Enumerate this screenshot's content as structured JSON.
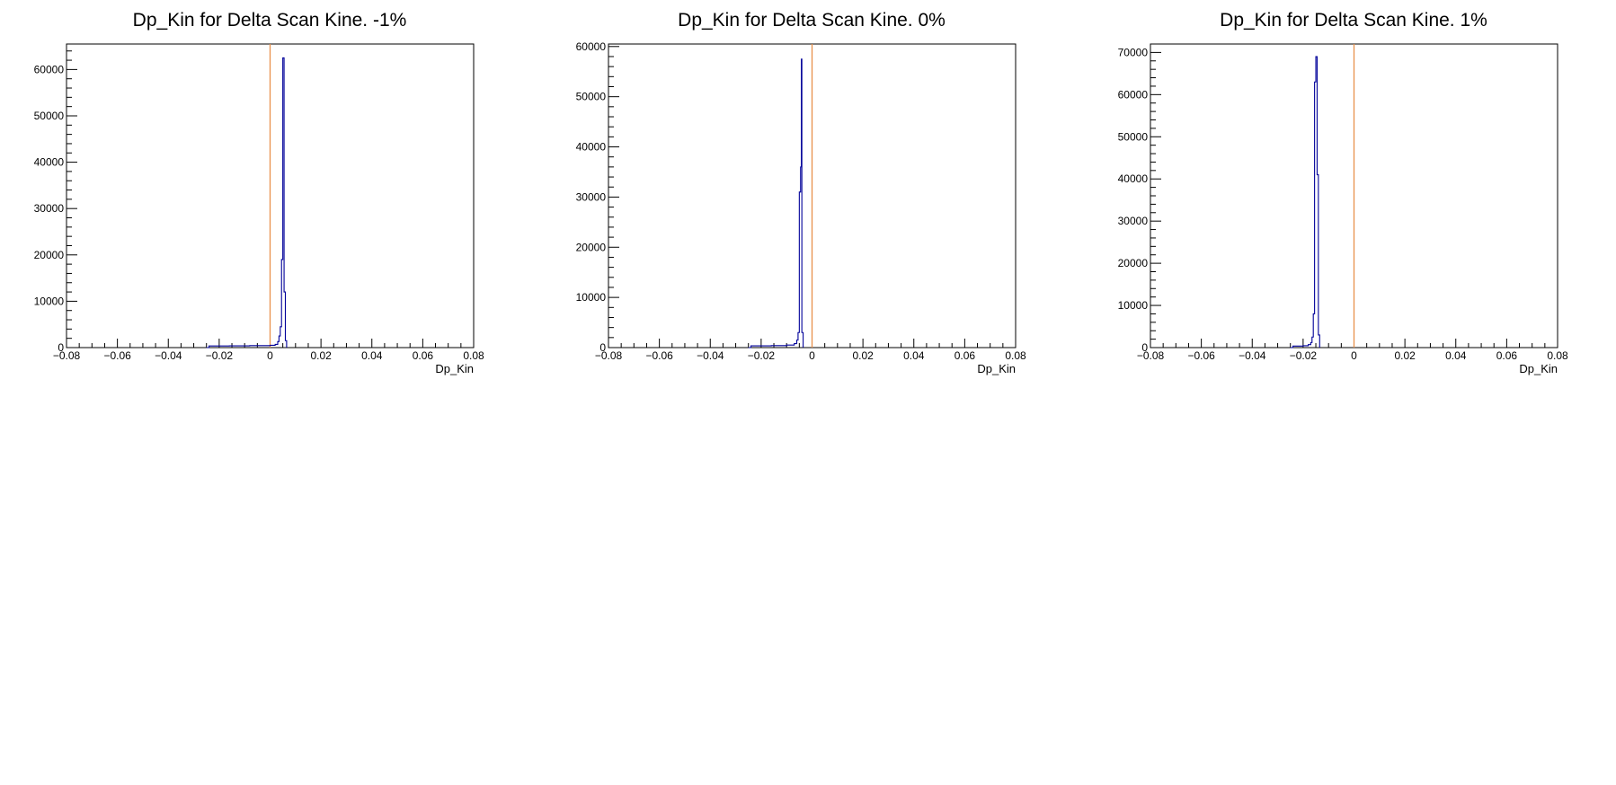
{
  "colors": {
    "histogram": "#000099",
    "marker_line": "#e8914a",
    "frame": "#000000",
    "background": "#ffffff"
  },
  "chart_data": [
    {
      "type": "histogram",
      "title": "Dp_Kin for Delta Scan Kine. -1%",
      "xlabel": "Dp_Kin",
      "ylabel": "",
      "xlim": [
        -0.08,
        0.08
      ],
      "ylim": [
        0,
        65500
      ],
      "x_tick_labels": [
        "−0.08",
        "−0.06",
        "−0.04",
        "−0.02",
        "0",
        "0.02",
        "0.04",
        "0.06",
        "0.08"
      ],
      "y_tick_labels": [
        "0",
        "10000",
        "20000",
        "30000",
        "40000",
        "50000",
        "60000"
      ],
      "y_ticks": [
        0,
        10000,
        20000,
        30000,
        40000,
        50000,
        60000
      ],
      "marker_x": 0,
      "grid": false,
      "histogram": [
        {
          "x": -0.025,
          "y": 0
        },
        {
          "x": -0.024,
          "y": 350
        },
        {
          "x": -0.016,
          "y": 380
        },
        {
          "x": -0.008,
          "y": 420
        },
        {
          "x": 0.0,
          "y": 500
        },
        {
          "x": 0.002,
          "y": 700
        },
        {
          "x": 0.003,
          "y": 1300
        },
        {
          "x": 0.0035,
          "y": 2500
        },
        {
          "x": 0.004,
          "y": 4500
        },
        {
          "x": 0.0045,
          "y": 19000
        },
        {
          "x": 0.005,
          "y": 62500
        },
        {
          "x": 0.0055,
          "y": 12000
        },
        {
          "x": 0.006,
          "y": 1500
        },
        {
          "x": 0.0065,
          "y": 0
        }
      ]
    },
    {
      "type": "histogram",
      "title": "Dp_Kin for Delta Scan Kine. 0%",
      "xlabel": "Dp_Kin",
      "ylabel": "",
      "xlim": [
        -0.08,
        0.08
      ],
      "ylim": [
        0,
        60500
      ],
      "x_tick_labels": [
        "−0.08",
        "−0.06",
        "−0.04",
        "−0.02",
        "0",
        "0.02",
        "0.04",
        "0.06",
        "0.08"
      ],
      "y_tick_labels": [
        "0",
        "10000",
        "20000",
        "30000",
        "40000",
        "50000",
        "60000"
      ],
      "y_ticks": [
        0,
        10000,
        20000,
        30000,
        40000,
        50000,
        60000
      ],
      "marker_x": 0,
      "grid": false,
      "histogram": [
        {
          "x": -0.025,
          "y": 0
        },
        {
          "x": -0.024,
          "y": 350
        },
        {
          "x": -0.016,
          "y": 400
        },
        {
          "x": -0.01,
          "y": 500
        },
        {
          "x": -0.007,
          "y": 800
        },
        {
          "x": -0.006,
          "y": 1500
        },
        {
          "x": -0.0055,
          "y": 3000
        },
        {
          "x": -0.005,
          "y": 31000
        },
        {
          "x": -0.0045,
          "y": 36000
        },
        {
          "x": -0.0042,
          "y": 57500
        },
        {
          "x": -0.004,
          "y": 3000
        },
        {
          "x": -0.0035,
          "y": 0
        }
      ]
    },
    {
      "type": "histogram",
      "title": "Dp_Kin for Delta Scan Kine. 1%",
      "xlabel": "Dp_Kin",
      "ylabel": "",
      "xlim": [
        -0.08,
        0.08
      ],
      "ylim": [
        0,
        72000
      ],
      "x_tick_labels": [
        "−0.08",
        "−0.06",
        "−0.04",
        "−0.02",
        "0",
        "0.02",
        "0.04",
        "0.06",
        "0.08"
      ],
      "y_tick_labels": [
        "0",
        "10000",
        "20000",
        "30000",
        "40000",
        "50000",
        "60000",
        "70000"
      ],
      "y_ticks": [
        0,
        10000,
        20000,
        30000,
        40000,
        50000,
        60000,
        70000
      ],
      "marker_x": 0,
      "grid": false,
      "histogram": [
        {
          "x": -0.025,
          "y": 0
        },
        {
          "x": -0.024,
          "y": 350
        },
        {
          "x": -0.02,
          "y": 450
        },
        {
          "x": -0.018,
          "y": 700
        },
        {
          "x": -0.017,
          "y": 1200
        },
        {
          "x": -0.0165,
          "y": 2500
        },
        {
          "x": -0.016,
          "y": 8000
        },
        {
          "x": -0.0155,
          "y": 63000
        },
        {
          "x": -0.015,
          "y": 69000
        },
        {
          "x": -0.0145,
          "y": 41000
        },
        {
          "x": -0.014,
          "y": 3000
        },
        {
          "x": -0.0135,
          "y": 0
        }
      ]
    }
  ]
}
